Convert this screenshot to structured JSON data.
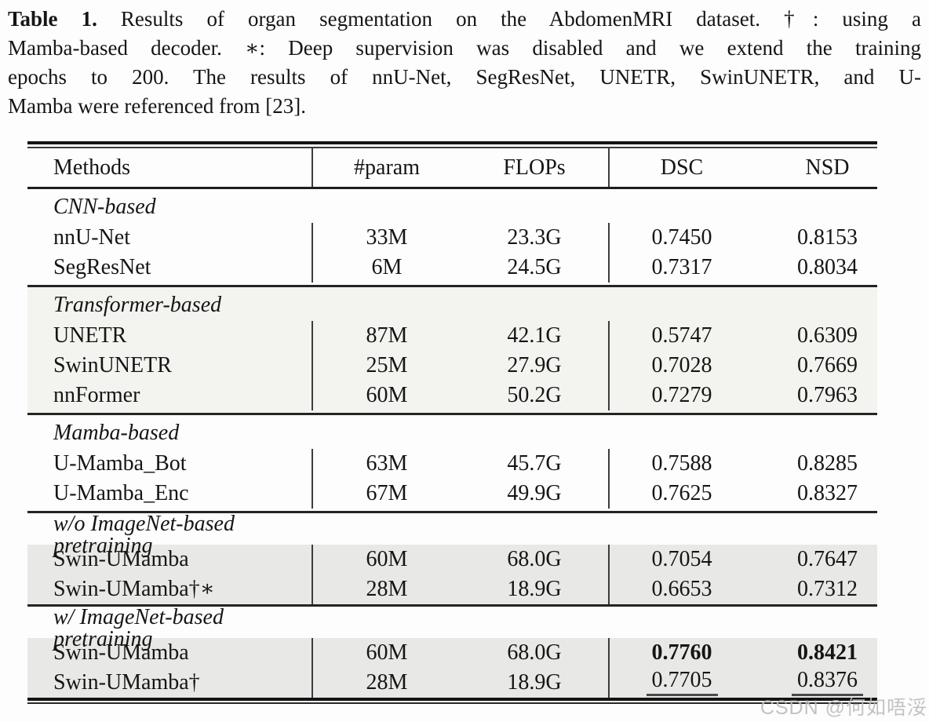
{
  "caption": {
    "label": "Table 1.",
    "line1_rest": " Results of organ segmentation on the AbdomenMRI dataset. †: using a",
    "line2": "Mamba-based decoder. ∗: Deep supervision was disabled and we extend the training",
    "line3": "epochs to 200. The results of nnU-Net, SegResNet, UNETR, SwinUNETR, and U-",
    "line4": "Mamba were referenced from [23]."
  },
  "table": {
    "columns": [
      "Methods",
      "#param",
      "FLOPs",
      "DSC",
      "NSD"
    ],
    "sections": [
      {
        "header": "CNN-based",
        "rows": [
          {
            "method": "nnU-Net",
            "param": "33M",
            "flops": "23.3G",
            "dsc": "0.7450",
            "nsd": "0.8153"
          },
          {
            "method": "SegResNet",
            "param": "6M",
            "flops": "24.5G",
            "dsc": "0.7317",
            "nsd": "0.8034"
          }
        ]
      },
      {
        "header": "Transformer-based",
        "rows": [
          {
            "method": "UNETR",
            "param": "87M",
            "flops": "42.1G",
            "dsc": "0.5747",
            "nsd": "0.6309"
          },
          {
            "method": "SwinUNETR",
            "param": "25M",
            "flops": "27.9G",
            "dsc": "0.7028",
            "nsd": "0.7669"
          },
          {
            "method": "nnFormer",
            "param": "60M",
            "flops": "50.2G",
            "dsc": "0.7279",
            "nsd": "0.7963"
          }
        ]
      },
      {
        "header": "Mamba-based",
        "rows": [
          {
            "method": "U-Mamba_Bot",
            "param": "63M",
            "flops": "45.7G",
            "dsc": "0.7588",
            "nsd": "0.8285"
          },
          {
            "method": "U-Mamba_Enc",
            "param": "67M",
            "flops": "49.9G",
            "dsc": "0.7625",
            "nsd": "0.8327"
          }
        ]
      },
      {
        "header": "w/o ImageNet-based pretraining",
        "rows": [
          {
            "method": "Swin-UMamba",
            "param": "60M",
            "flops": "68.0G",
            "dsc": "0.7054",
            "nsd": "0.7647"
          },
          {
            "method": "Swin-UMamba†∗",
            "param": "28M",
            "flops": "18.9G",
            "dsc": "0.6653",
            "nsd": "0.7312"
          }
        ]
      },
      {
        "header": "w/ ImageNet-based pretraining",
        "rows": [
          {
            "method": "Swin-UMamba",
            "param": "60M",
            "flops": "68.0G",
            "dsc": "0.7760",
            "nsd": "0.8421"
          },
          {
            "method": "Swin-UMamba†",
            "param": "28M",
            "flops": "18.9G",
            "dsc": "0.7705",
            "nsd": "0.8376"
          }
        ]
      }
    ]
  },
  "watermark": "CSDN @何如唔浽",
  "colors": {
    "page_bg": "#fdfdfd",
    "shade_light": "#f3f3f0",
    "shade_dark": "#e8e8e6",
    "rule": "#1e1e1e",
    "text": "#151515",
    "watermark": "#bcbcbc"
  }
}
